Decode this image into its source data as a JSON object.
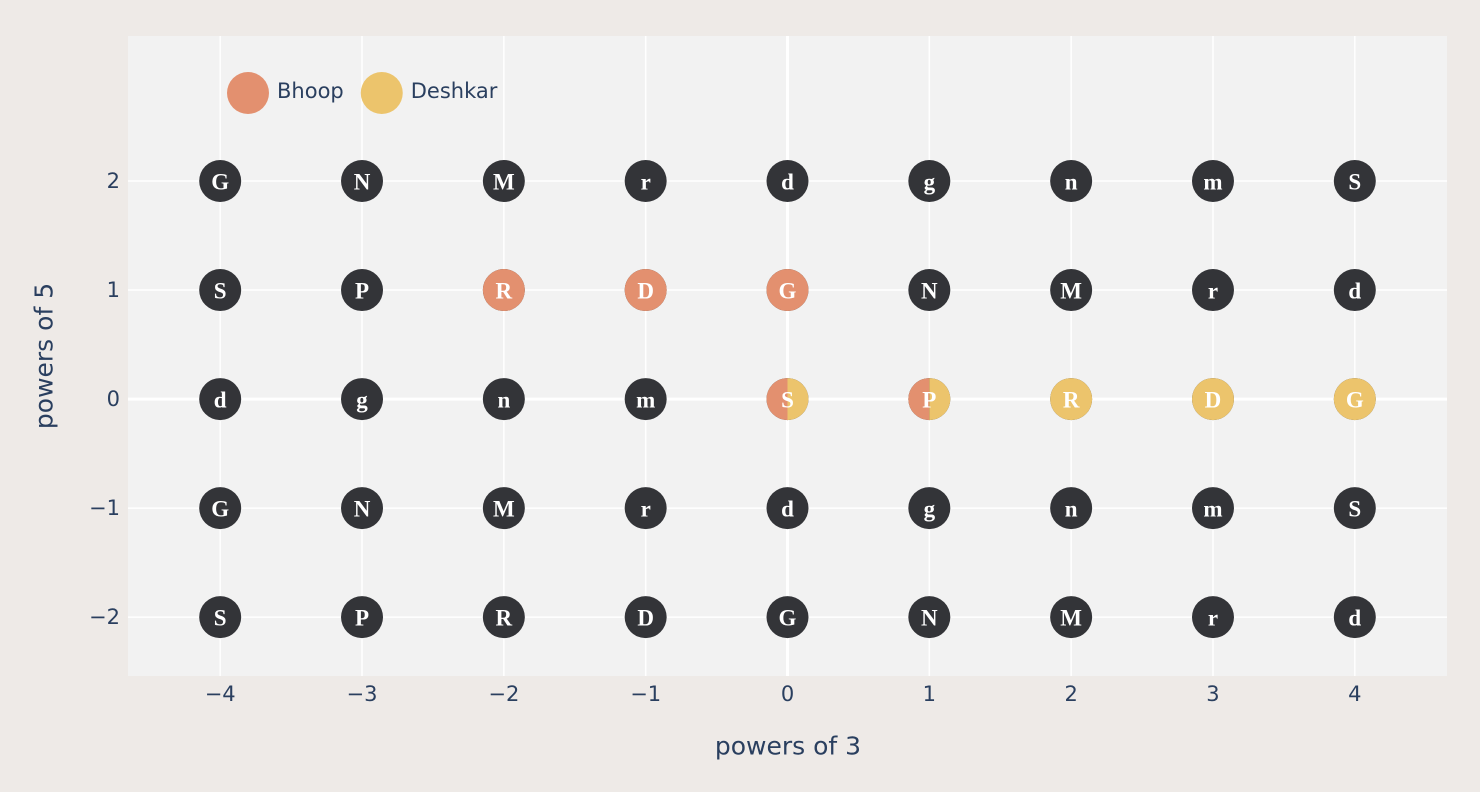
{
  "chart_data": {
    "type": "scatter",
    "xlabel": "powers of 3",
    "ylabel": "powers of 5",
    "xlim": [
      -4.65,
      4.65
    ],
    "ylim": [
      -2.54,
      3.33
    ],
    "xticks": [
      {
        "value": -4,
        "label": "−4"
      },
      {
        "value": -3,
        "label": "−3"
      },
      {
        "value": -2,
        "label": "−2"
      },
      {
        "value": -1,
        "label": "−1"
      },
      0,
      1,
      2,
      3,
      4
    ],
    "yticks": [
      {
        "value": -2,
        "label": "−2"
      },
      {
        "value": -1,
        "label": "−1"
      },
      0,
      1,
      2
    ],
    "grid": true,
    "legend": "top left",
    "series": [
      {
        "color": "#333438",
        "x": [
          -4,
          -3,
          -2,
          -1,
          0,
          1,
          2,
          3,
          4,
          -4,
          -3,
          -2,
          -1,
          0,
          1,
          2,
          3,
          4,
          -4,
          -3,
          -2,
          -1,
          0,
          1,
          2,
          3,
          4,
          -4,
          -3,
          -2,
          -1,
          0,
          1,
          2,
          3,
          4,
          -4,
          -3,
          -2,
          -1,
          0,
          1,
          2,
          3,
          4
        ],
        "y": [
          2,
          2,
          2,
          2,
          2,
          2,
          2,
          2,
          2,
          1,
          1,
          1,
          1,
          1,
          1,
          1,
          1,
          1,
          0,
          0,
          0,
          0,
          0,
          0,
          0,
          0,
          0,
          -1,
          -1,
          -1,
          -1,
          -1,
          -1,
          -1,
          -1,
          -1,
          -2,
          -2,
          -2,
          -2,
          -2,
          -2,
          -2,
          -2,
          -2
        ],
        "text": [
          "G",
          "N",
          "M",
          "r",
          "d",
          "g",
          "n",
          "m",
          "S",
          "S",
          "P",
          "R",
          "D",
          "G",
          "N",
          "M",
          "r",
          "d",
          "d",
          "g",
          "n",
          "m",
          "S",
          "P",
          "R",
          "D",
          "G",
          "G",
          "N",
          "M",
          "r",
          "d",
          "g",
          "n",
          "m",
          "S",
          "S",
          "P",
          "R",
          "D",
          "G",
          "N",
          "M",
          "r",
          "d"
        ]
      },
      {
        "name": "Bhoop",
        "color": "#e3906f",
        "x": [
          -2,
          -1,
          0,
          0,
          1
        ],
        "y": [
          1,
          1,
          1,
          0,
          0
        ]
      },
      {
        "name": "Deshkar",
        "color": "#ecc46c",
        "x": [
          0,
          1,
          2,
          3,
          4
        ],
        "y": [
          0,
          0,
          0,
          0,
          0
        ]
      }
    ]
  }
}
